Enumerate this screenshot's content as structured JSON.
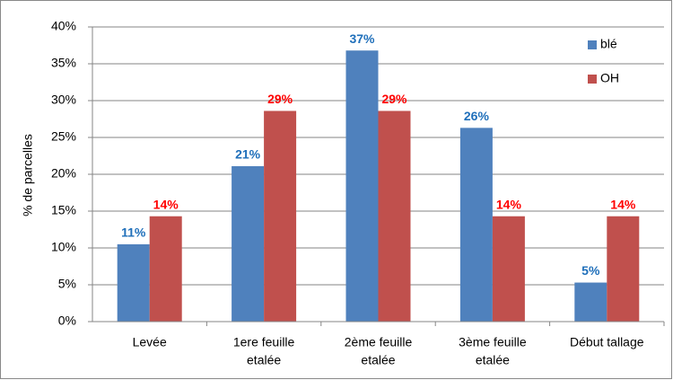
{
  "chart_data": {
    "type": "bar",
    "y_label": "% de parcelles",
    "categories": [
      [
        "Levée"
      ],
      [
        "1ere feuille",
        "etalée"
      ],
      [
        "2ème feuille",
        "etalée"
      ],
      [
        "3ème feuille",
        "etalée"
      ],
      [
        "Début tallage"
      ]
    ],
    "series": [
      {
        "name": "blé",
        "color": "#4f81bd",
        "label_color": "#1f6fba",
        "values": [
          10.5,
          21.1,
          36.8,
          26.3,
          5.3
        ],
        "value_labels": [
          "11%",
          "21%",
          "37%",
          "26%",
          "5%"
        ]
      },
      {
        "name": "OH",
        "color": "#c0504d",
        "label_color": "#ff0000",
        "values": [
          14.3,
          28.6,
          28.6,
          14.3,
          14.3
        ],
        "value_labels": [
          "14%",
          "29%",
          "29%",
          "14%",
          "14%"
        ]
      }
    ],
    "ylim": [
      0,
      40
    ],
    "yticks": [
      {
        "value": 0,
        "label": "0%"
      },
      {
        "value": 5,
        "label": "5%"
      },
      {
        "value": 10,
        "label": "10%"
      },
      {
        "value": 15,
        "label": "15%"
      },
      {
        "value": 20,
        "label": "20%"
      },
      {
        "value": 25,
        "label": "25%"
      },
      {
        "value": 30,
        "label": "30%"
      },
      {
        "value": 35,
        "label": "35%"
      },
      {
        "value": 40,
        "label": "40%"
      }
    ],
    "grid": true,
    "legend": "top-right"
  }
}
